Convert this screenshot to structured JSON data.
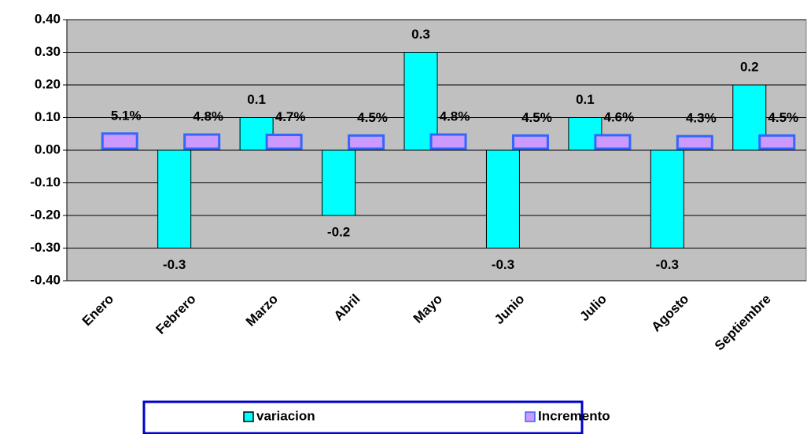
{
  "chart_data": {
    "type": "bar",
    "categories": [
      "Enero",
      "Febrero",
      "Marzo",
      "Abril",
      "Mayo",
      "Junio",
      "Julio",
      "Agosto",
      "Septiembre"
    ],
    "series": [
      {
        "name": "variacion",
        "color": "#00ffff",
        "values": [
          null,
          -0.3,
          0.1,
          -0.2,
          0.3,
          -0.3,
          0.1,
          -0.3,
          0.2
        ]
      },
      {
        "name": "Incremento",
        "color": "#cc99ff",
        "values": [
          0.051,
          0.048,
          0.047,
          0.045,
          0.048,
          0.045,
          0.046,
          0.043,
          0.045
        ],
        "value_labels": [
          "5.1%",
          "4.8%",
          "4.7%",
          "4.5%",
          "4.8%",
          "4.5%",
          "4.6%",
          "4.3%",
          "4.5%"
        ]
      }
    ],
    "ylim": [
      -0.4,
      0.4
    ],
    "yticks": [
      {
        "value": -0.4,
        "label": "-0.40"
      },
      {
        "value": -0.3,
        "label": "-0.30"
      },
      {
        "value": -0.2,
        "label": "-0.20"
      },
      {
        "value": -0.1,
        "label": "-0.10"
      },
      {
        "value": 0,
        "label": "0.00"
      },
      {
        "value": 0.1,
        "label": "0.10"
      },
      {
        "value": 0.2,
        "label": "0.20"
      },
      {
        "value": 0.3,
        "label": "0.30"
      },
      {
        "value": 0.4,
        "label": "0.40"
      }
    ],
    "grid": true,
    "legend": "bottom"
  }
}
